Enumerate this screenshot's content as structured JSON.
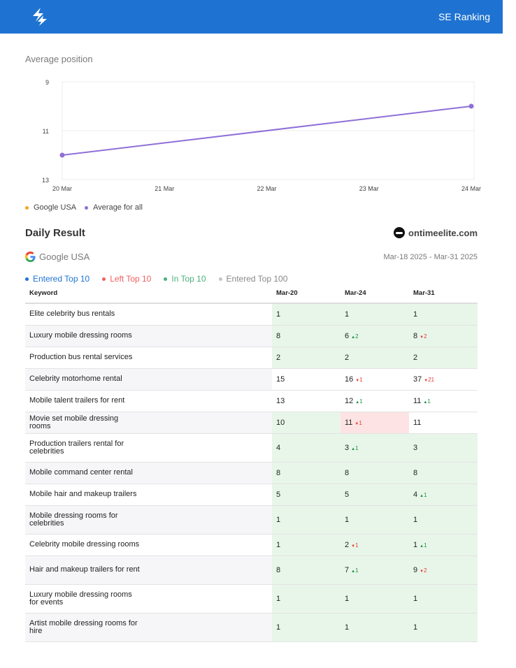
{
  "header": {
    "brand": "SE Ranking",
    "logo_icon": "lightning-icon",
    "bar_color": "#1e73d2"
  },
  "avg_position": {
    "title": "Average position",
    "chart_data": {
      "type": "line",
      "x": [
        "20 Mar",
        "21 Mar",
        "22 Mar",
        "23 Mar",
        "24 Mar"
      ],
      "y_ticks": [
        "9",
        "11",
        "13"
      ],
      "ylim": [
        13,
        9
      ],
      "y_reversed": true,
      "series": [
        {
          "color": "#8e6fd8",
          "points": [
            {
              "x": "20 Mar",
              "y": 12
            },
            {
              "x": "24 Mar",
              "y": 10
            }
          ]
        }
      ],
      "legend": [
        {
          "label": "Google USA",
          "color": "#f5a623"
        },
        {
          "label": "Average for all",
          "color": "#8e6fd8"
        }
      ],
      "grid": true
    }
  },
  "daily": {
    "title": "Daily Result",
    "site": "ontimeelite.com",
    "engine": "Google USA",
    "date_range": "Mar-18 2025 - Mar-31 2025",
    "legend": [
      {
        "label": "Entered Top 10",
        "color": "#1e73d2"
      },
      {
        "label": "Left Top 10",
        "color": "#f06060"
      },
      {
        "label": "In Top 10",
        "color": "#4caf7a"
      },
      {
        "label": "Entered Top 100",
        "color": "#c4c4c4"
      }
    ],
    "columns": [
      "Keyword",
      "Mar-20",
      "Mar-24",
      "Mar-31"
    ],
    "rows": [
      {
        "keyword": "Elite celebrity bus rentals",
        "cells": [
          {
            "v": "1",
            "bg": "g"
          },
          {
            "v": "1",
            "bg": "g"
          },
          {
            "v": "1",
            "bg": "g"
          }
        ]
      },
      {
        "keyword": "Luxury mobile dressing rooms",
        "cells": [
          {
            "v": "8",
            "bg": "g"
          },
          {
            "v": "6",
            "bg": "g",
            "delta": "2",
            "dir": "up"
          },
          {
            "v": "8",
            "bg": "g",
            "delta": "2",
            "dir": "down"
          }
        ]
      },
      {
        "keyword": "Production bus rental services",
        "cells": [
          {
            "v": "2",
            "bg": "g"
          },
          {
            "v": "2",
            "bg": "g"
          },
          {
            "v": "2",
            "bg": "g"
          }
        ]
      },
      {
        "keyword": "Celebrity motorhome rental",
        "cells": [
          {
            "v": "15"
          },
          {
            "v": "16",
            "delta": "1",
            "dir": "down"
          },
          {
            "v": "37",
            "delta": "21",
            "dir": "down"
          }
        ]
      },
      {
        "keyword": "Mobile talent trailers for rent",
        "cells": [
          {
            "v": "13"
          },
          {
            "v": "12",
            "delta": "1",
            "dir": "up"
          },
          {
            "v": "11",
            "delta": "1",
            "dir": "up"
          }
        ]
      },
      {
        "keyword": "Movie set mobile dressing rooms",
        "cells": [
          {
            "v": "10",
            "bg": "g"
          },
          {
            "v": "11",
            "bg": "r",
            "delta": "1",
            "dir": "down"
          },
          {
            "v": "11"
          }
        ]
      },
      {
        "keyword": "Production trailers rental for celebrities",
        "cells": [
          {
            "v": "4",
            "bg": "g"
          },
          {
            "v": "3",
            "bg": "g",
            "delta": "1",
            "dir": "up"
          },
          {
            "v": "3",
            "bg": "g"
          }
        ]
      },
      {
        "keyword": "Mobile command center rental",
        "cells": [
          {
            "v": "8",
            "bg": "g"
          },
          {
            "v": "8",
            "bg": "g"
          },
          {
            "v": "8",
            "bg": "g"
          }
        ]
      },
      {
        "keyword": "Mobile hair and makeup trailers",
        "cells": [
          {
            "v": "5",
            "bg": "g"
          },
          {
            "v": "5",
            "bg": "g"
          },
          {
            "v": "4",
            "bg": "g",
            "delta": "1",
            "dir": "up"
          }
        ]
      },
      {
        "keyword": "Mobile dressing rooms for celebrities",
        "cells": [
          {
            "v": "1",
            "bg": "g"
          },
          {
            "v": "1",
            "bg": "g"
          },
          {
            "v": "1",
            "bg": "g"
          }
        ]
      },
      {
        "keyword": "Celebrity mobile dressing rooms",
        "cells": [
          {
            "v": "1",
            "bg": "g"
          },
          {
            "v": "2",
            "bg": "g",
            "delta": "1",
            "dir": "down"
          },
          {
            "v": "1",
            "bg": "g",
            "delta": "1",
            "dir": "up"
          }
        ]
      },
      {
        "keyword": "Hair and makeup trailers for rent",
        "cells": [
          {
            "v": "8",
            "bg": "g"
          },
          {
            "v": "7",
            "bg": "g",
            "delta": "1",
            "dir": "up"
          },
          {
            "v": "9",
            "bg": "g",
            "delta": "2",
            "dir": "down"
          }
        ]
      },
      {
        "keyword": "Luxury mobile dressing rooms for events",
        "cells": [
          {
            "v": "1",
            "bg": "g"
          },
          {
            "v": "1",
            "bg": "g"
          },
          {
            "v": "1",
            "bg": "g"
          }
        ]
      },
      {
        "keyword": "Artist mobile dressing rooms for hire",
        "cells": [
          {
            "v": "1",
            "bg": "g"
          },
          {
            "v": "1",
            "bg": "g"
          },
          {
            "v": "1",
            "bg": "g"
          }
        ]
      }
    ]
  }
}
